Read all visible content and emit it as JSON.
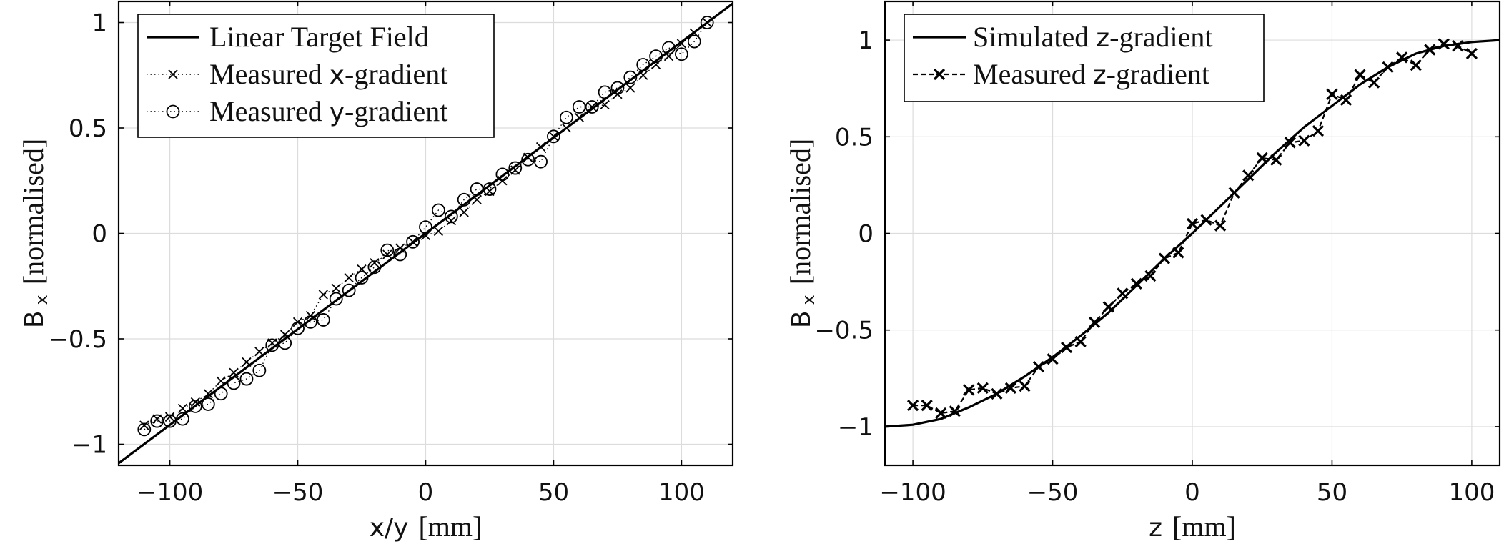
{
  "chart_data": [
    {
      "type": "line",
      "xlabel_main": "x/y",
      "xlabel_unit": "[mm]",
      "ylabel_main": "B",
      "ylabel_sub": "x",
      "ylabel_unit": "[normalised]",
      "xlim": [
        -120,
        120
      ],
      "ylim": [
        -1.1,
        1.1
      ],
      "xticks": [
        -100,
        -50,
        0,
        50,
        100
      ],
      "xtick_labels": [
        "−100",
        "−50",
        "0",
        "50",
        "100"
      ],
      "yticks": [
        -1,
        -0.5,
        0,
        0.5,
        1
      ],
      "ytick_labels": [
        "−1",
        "−0.5",
        "0",
        "0.5",
        "1"
      ],
      "grid": true,
      "legend_position": "top-left",
      "series": [
        {
          "name": "Linear Target Field",
          "legend_parts": [
            "Linear Target Field"
          ],
          "style": "solid",
          "marker": "none",
          "x": [
            -120,
            120
          ],
          "y": [
            -1.09,
            1.09
          ]
        },
        {
          "name": "Measured x-gradient",
          "legend_parts": [
            "Measured ",
            "x",
            "-gradient"
          ],
          "style": "dotted",
          "marker": "x",
          "x": [
            -110,
            -105,
            -100,
            -95,
            -90,
            -85,
            -80,
            -75,
            -70,
            -65,
            -60,
            -55,
            -50,
            -45,
            -40,
            -35,
            -30,
            -25,
            -20,
            -15,
            -10,
            -5,
            0,
            5,
            10,
            15,
            20,
            25,
            30,
            35,
            40,
            45,
            50,
            55,
            60,
            65,
            70,
            75,
            80,
            85,
            90,
            95,
            100,
            105,
            110
          ],
          "y": [
            -0.91,
            -0.88,
            -0.87,
            -0.83,
            -0.8,
            -0.76,
            -0.7,
            -0.66,
            -0.61,
            -0.56,
            -0.52,
            -0.48,
            -0.42,
            -0.39,
            -0.29,
            -0.26,
            -0.21,
            -0.17,
            -0.14,
            -0.1,
            -0.07,
            -0.04,
            -0.01,
            0.01,
            0.06,
            0.1,
            0.16,
            0.2,
            0.25,
            0.3,
            0.36,
            0.41,
            0.46,
            0.5,
            0.55,
            0.6,
            0.61,
            0.66,
            0.69,
            0.75,
            0.8,
            0.84,
            0.9,
            0.95,
            1.0
          ]
        },
        {
          "name": "Measured y-gradient",
          "legend_parts": [
            "Measured ",
            "y",
            "-gradient"
          ],
          "style": "dotted",
          "marker": "o",
          "x": [
            -110,
            -105,
            -100,
            -95,
            -90,
            -85,
            -80,
            -75,
            -70,
            -65,
            -60,
            -55,
            -50,
            -45,
            -40,
            -35,
            -30,
            -25,
            -20,
            -15,
            -10,
            -5,
            0,
            5,
            10,
            15,
            20,
            25,
            30,
            35,
            40,
            45,
            50,
            55,
            60,
            65,
            70,
            75,
            80,
            85,
            90,
            95,
            100,
            105,
            110
          ],
          "y": [
            -0.93,
            -0.89,
            -0.89,
            -0.88,
            -0.82,
            -0.81,
            -0.76,
            -0.71,
            -0.69,
            -0.65,
            -0.53,
            -0.52,
            -0.45,
            -0.42,
            -0.41,
            -0.31,
            -0.27,
            -0.21,
            -0.16,
            -0.08,
            -0.1,
            -0.04,
            0.03,
            0.11,
            0.08,
            0.16,
            0.21,
            0.21,
            0.28,
            0.31,
            0.35,
            0.34,
            0.46,
            0.55,
            0.6,
            0.6,
            0.67,
            0.69,
            0.74,
            0.8,
            0.84,
            0.88,
            0.85,
            0.91,
            1.0
          ]
        }
      ]
    },
    {
      "type": "line",
      "xlabel_main": "z",
      "xlabel_unit": "[mm]",
      "ylabel_main": "B",
      "ylabel_sub": "x",
      "ylabel_unit": "[normalised]",
      "xlim": [
        -110,
        110
      ],
      "ylim": [
        -1.2,
        1.2
      ],
      "xticks": [
        -100,
        -50,
        0,
        50,
        100
      ],
      "xtick_labels": [
        "−100",
        "−50",
        "0",
        "50",
        "100"
      ],
      "yticks": [
        -1,
        -0.5,
        0,
        0.5,
        1
      ],
      "ytick_labels": [
        "−1",
        "−0.5",
        "0",
        "0.5",
        "1"
      ],
      "grid": true,
      "legend_position": "top-left",
      "series": [
        {
          "name": "Simulated z-gradient",
          "legend_parts": [
            "Simulated ",
            "z",
            "-gradient"
          ],
          "style": "solid",
          "marker": "none",
          "x": [
            -110,
            -100,
            -90,
            -80,
            -70,
            -60,
            -50,
            -40,
            -30,
            -20,
            -10,
            0,
            10,
            20,
            30,
            40,
            50,
            60,
            70,
            80,
            90,
            100,
            110
          ],
          "y": [
            -1.0,
            -0.99,
            -0.96,
            -0.9,
            -0.83,
            -0.74,
            -0.64,
            -0.53,
            -0.41,
            -0.27,
            -0.13,
            0.0,
            0.14,
            0.28,
            0.42,
            0.55,
            0.66,
            0.77,
            0.86,
            0.93,
            0.97,
            0.99,
            1.0
          ]
        },
        {
          "name": "Measured z-gradient",
          "legend_parts": [
            "Measured ",
            "z",
            "-gradient"
          ],
          "style": "dashed",
          "marker": "x",
          "x": [
            -100,
            -95,
            -90,
            -85,
            -80,
            -75,
            -70,
            -65,
            -60,
            -55,
            -50,
            -45,
            -40,
            -35,
            -30,
            -25,
            -20,
            -15,
            -10,
            -5,
            0,
            5,
            10,
            15,
            20,
            25,
            30,
            35,
            40,
            45,
            50,
            55,
            60,
            65,
            70,
            75,
            80,
            85,
            90,
            95,
            100
          ],
          "y": [
            -0.89,
            -0.89,
            -0.93,
            -0.92,
            -0.81,
            -0.8,
            -0.83,
            -0.8,
            -0.79,
            -0.69,
            -0.65,
            -0.59,
            -0.56,
            -0.46,
            -0.38,
            -0.31,
            -0.26,
            -0.22,
            -0.13,
            -0.1,
            0.05,
            0.07,
            0.04,
            0.21,
            0.3,
            0.39,
            0.38,
            0.47,
            0.48,
            0.53,
            0.72,
            0.69,
            0.82,
            0.78,
            0.86,
            0.91,
            0.87,
            0.95,
            0.98,
            0.97,
            0.93
          ]
        }
      ]
    }
  ]
}
